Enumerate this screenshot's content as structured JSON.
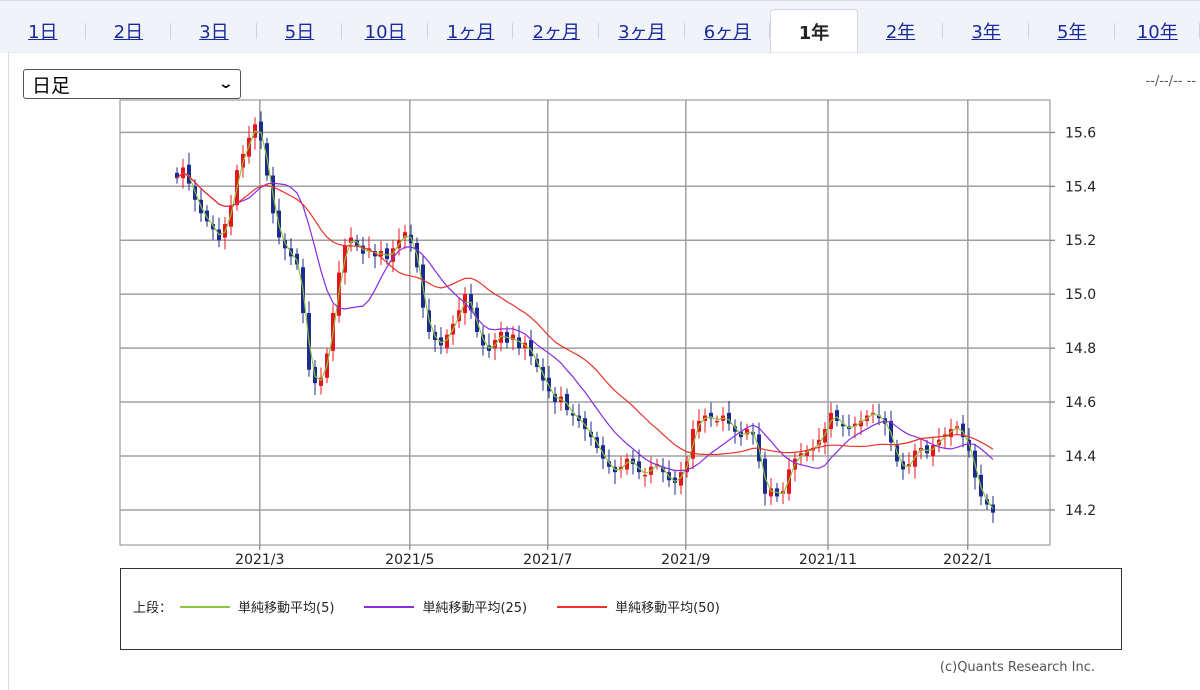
{
  "tabs": [
    "1日",
    "2日",
    "3日",
    "5日",
    "10日",
    "1ヶ月",
    "2ヶ月",
    "3ヶ月",
    "6ヶ月",
    "1年",
    "2年",
    "3年",
    "5年",
    "10年"
  ],
  "active_tab": "1年",
  "period_select": {
    "value": "日足"
  },
  "datetime": "--/--/-- --",
  "legend": {
    "prefix": "上段：",
    "items": [
      {
        "label": "単純移動平均(5)",
        "color": "#8cc63f",
        "period": 5
      },
      {
        "label": "単純移動平均(25)",
        "color": "#8a2be2",
        "period": 25
      },
      {
        "label": "単純移動平均(50)",
        "color": "#e8322a",
        "period": 50
      }
    ]
  },
  "copyright": "(c)Quants Research Inc.",
  "colors": {
    "up": "#e8141e",
    "down": "#1b2b8f",
    "grid": "#a0a0a0"
  },
  "chart_data": {
    "type": "candlestick",
    "title": "",
    "ylim": [
      14.07,
      15.72
    ],
    "yticks": [
      "14.2",
      "14.4",
      "14.6",
      "14.8",
      "15.0",
      "15.2",
      "15.4",
      "15.6"
    ],
    "xticks": [
      {
        "label": "2021/3",
        "index": 13.8
      },
      {
        "label": "2021/5",
        "index": 38.8
      },
      {
        "label": "2021/7",
        "index": 61.8
      },
      {
        "label": "2021/9",
        "index": 84.8
      },
      {
        "label": "2021/11",
        "index": 108.5
      },
      {
        "label": "2022/1",
        "index": 131.8
      }
    ],
    "closes": [
      15.43,
      15.47,
      15.41,
      15.35,
      15.3,
      15.27,
      15.24,
      15.2,
      15.26,
      15.33,
      15.46,
      15.52,
      15.58,
      15.63,
      15.57,
      15.44,
      15.3,
      15.21,
      15.17,
      15.14,
      15.11,
      14.93,
      14.72,
      14.67,
      14.69,
      14.78,
      14.93,
      15.08,
      15.18,
      15.21,
      15.18,
      15.15,
      15.17,
      15.14,
      15.16,
      15.13,
      15.17,
      15.2,
      15.23,
      15.19,
      15.1,
      14.95,
      14.86,
      14.83,
      14.81,
      14.85,
      14.89,
      14.94,
      15.0,
      14.94,
      14.86,
      14.81,
      14.79,
      14.83,
      14.86,
      14.82,
      14.85,
      14.8,
      14.82,
      14.77,
      14.73,
      14.68,
      14.64,
      14.6,
      14.62,
      14.57,
      14.55,
      14.53,
      14.5,
      14.47,
      14.43,
      14.39,
      14.36,
      14.34,
      14.36,
      14.39,
      14.37,
      14.34,
      14.33,
      14.36,
      14.37,
      14.34,
      14.31,
      14.3,
      14.34,
      14.38,
      14.5,
      14.53,
      14.55,
      14.54,
      14.53,
      14.55,
      14.52,
      14.49,
      14.47,
      14.5,
      14.48,
      14.38,
      14.26,
      14.28,
      14.25,
      14.27,
      14.35,
      14.39,
      14.41,
      14.42,
      14.43,
      14.46,
      14.5,
      14.56,
      14.53,
      14.51,
      14.5,
      14.52,
      14.53,
      14.55,
      14.56,
      14.54,
      14.52,
      14.45,
      14.38,
      14.35,
      14.37,
      14.42,
      14.43,
      14.41,
      14.44,
      14.46,
      14.48,
      14.5,
      14.51,
      14.47,
      14.42,
      14.32,
      14.25,
      14.22,
      14.19
    ]
  }
}
